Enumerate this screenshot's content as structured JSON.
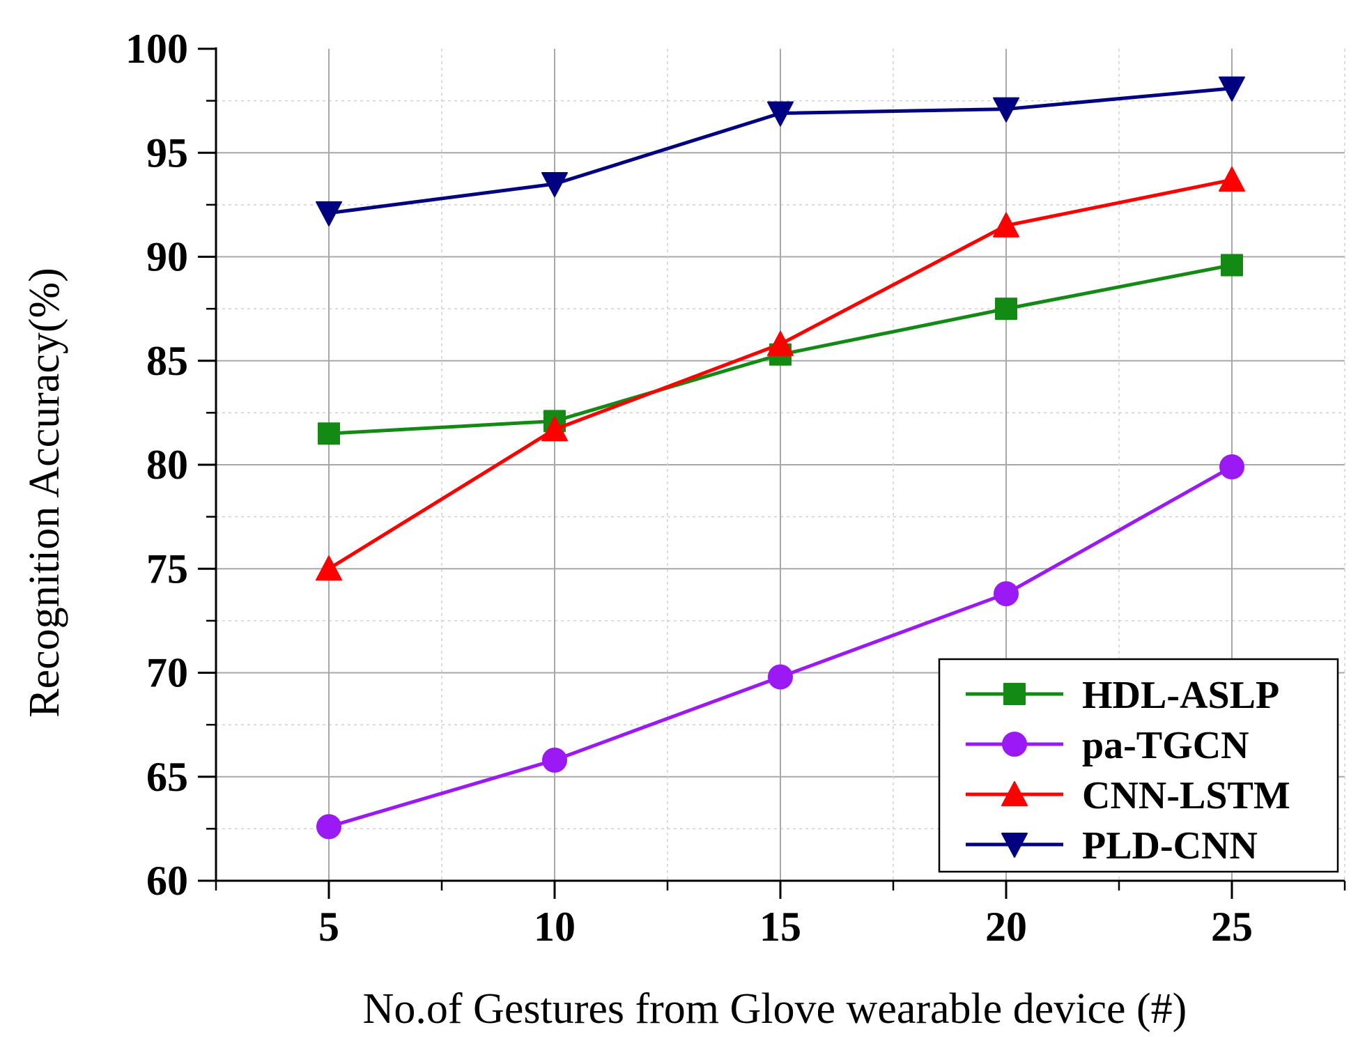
{
  "chart_data": {
    "type": "line",
    "title": "",
    "xlabel": "No.of Gestures from Glove wearable device (#)",
    "ylabel": "Recognition Accuracy(%)",
    "x": [
      5,
      10,
      15,
      20,
      25
    ],
    "xlim": [
      2.5,
      27.5
    ],
    "ylim": [
      60,
      100
    ],
    "x_ticks": [
      "5",
      "10",
      "15",
      "20",
      "25"
    ],
    "y_ticks": [
      "60",
      "65",
      "70",
      "75",
      "80",
      "85",
      "90",
      "95",
      "100"
    ],
    "grid": true,
    "legend_position": "bottom-right",
    "series": [
      {
        "name": "HDL-ASLP",
        "color": "#138a13",
        "marker": "square",
        "values": [
          81.5,
          82.1,
          85.3,
          87.5,
          89.6
        ]
      },
      {
        "name": "pa-TGCN",
        "color": "#9b19f5",
        "marker": "circle",
        "values": [
          62.6,
          65.8,
          69.8,
          73.8,
          79.9
        ]
      },
      {
        "name": "CNN-LSTM",
        "color": "#ff0000",
        "marker": "triangle-up",
        "values": [
          75.0,
          81.7,
          85.8,
          91.5,
          93.7
        ]
      },
      {
        "name": "PLD-CNN",
        "color": "#000080",
        "marker": "triangle-down",
        "values": [
          92.1,
          93.5,
          96.9,
          97.1,
          98.1
        ]
      }
    ]
  }
}
